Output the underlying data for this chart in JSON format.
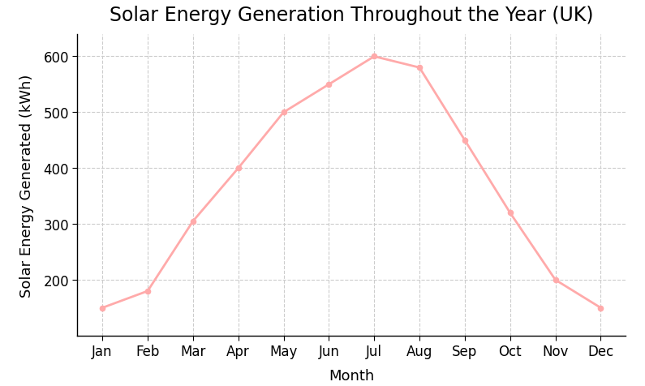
{
  "title": "Solar Energy Generation Throughout the Year (UK)",
  "xlabel": "Month",
  "ylabel": "Solar Energy Generated (kWh)",
  "months": [
    "Jan",
    "Feb",
    "Mar",
    "Apr",
    "May",
    "Jun",
    "Jul",
    "Aug",
    "Sep",
    "Oct",
    "Nov",
    "Dec"
  ],
  "values": [
    150,
    180,
    305,
    400,
    500,
    550,
    600,
    580,
    450,
    320,
    200,
    150
  ],
  "line_color": "#ffaaaa",
  "marker_color": "#ffaaaa",
  "background_color": "#ffffff",
  "grid_color": "#cccccc",
  "ylim": [
    100,
    640
  ],
  "yticks": [
    200,
    300,
    400,
    500,
    600
  ],
  "title_fontsize": 17,
  "label_fontsize": 13,
  "tick_fontsize": 12,
  "line_width": 2.0,
  "marker_size": 4.5
}
